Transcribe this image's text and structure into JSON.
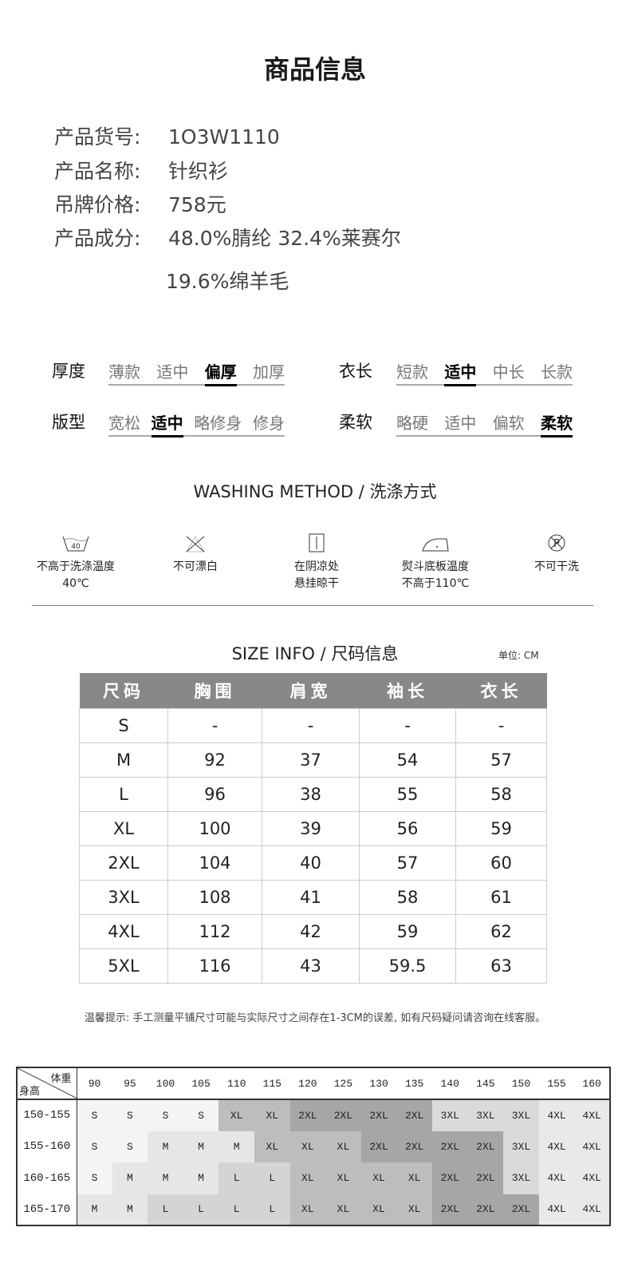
{
  "title": "商品信息",
  "info": [
    {
      "label": "产品货号:",
      "value": "1O3W1110"
    },
    {
      "label": "产品名称:",
      "value": "针织衫"
    },
    {
      "label": "吊牌价格:",
      "value": "758元"
    },
    {
      "label": "产品成分:",
      "value": "48.0%腈纶 32.4%莱赛尔",
      "value2": "19.6%绵羊毛"
    }
  ],
  "attributes": [
    {
      "name": "厚度",
      "options": [
        "薄款",
        "适中",
        "偏厚",
        "加厚"
      ],
      "selected": 2
    },
    {
      "name": "衣长",
      "options": [
        "短款",
        "适中",
        "中长",
        "长款"
      ],
      "selected": 1
    },
    {
      "name": "版型",
      "options": [
        "宽松",
        "适中",
        "略修身",
        "修身"
      ],
      "selected": 1
    },
    {
      "name": "柔软",
      "options": [
        "略硬",
        "适中",
        "偏软",
        "柔软"
      ],
      "selected": 3
    }
  ],
  "washing": {
    "title": "WASHING METHOD / 洗涤方式",
    "items": [
      {
        "icon": "wash-40-icon",
        "icon_text": "40",
        "line1": "不高于洗涤温度",
        "line2": "40℃"
      },
      {
        "icon": "no-bleach-icon",
        "line1": "不可漂白",
        "line2": ""
      },
      {
        "icon": "line-dry-shade-icon",
        "line1": "在阴凉处",
        "line2": "悬挂晾干"
      },
      {
        "icon": "iron-icon",
        "line1": "熨斗底板温度",
        "line2": "不高于110℃"
      },
      {
        "icon": "no-dry-clean-icon",
        "icon_text": "P",
        "line1": "不可干洗",
        "line2": ""
      }
    ]
  },
  "size_info": {
    "title": "SIZE INFO / 尺码信息",
    "unit": "单位: CM",
    "headers": [
      "尺码",
      "胸围",
      "肩宽",
      "袖长",
      "衣长"
    ],
    "rows": [
      [
        "S",
        "-",
        "-",
        "-",
        "-"
      ],
      [
        "M",
        "92",
        "37",
        "54",
        "57"
      ],
      [
        "L",
        "96",
        "38",
        "55",
        "58"
      ],
      [
        "XL",
        "100",
        "39",
        "56",
        "59"
      ],
      [
        "2XL",
        "104",
        "40",
        "57",
        "60"
      ],
      [
        "3XL",
        "108",
        "41",
        "58",
        "61"
      ],
      [
        "4XL",
        "112",
        "42",
        "59",
        "62"
      ],
      [
        "5XL",
        "116",
        "43",
        "59.5",
        "63"
      ]
    ]
  },
  "note": "温馨提示: 手工测量平铺尺寸可能与实际尺寸之间存在1-3CM的误差, 如有尺码疑问请咨询在线客服。",
  "fit_chart": {
    "weight_label": "体重",
    "height_label": "身高",
    "weights": [
      "90",
      "95",
      "100",
      "105",
      "110",
      "115",
      "120",
      "125",
      "130",
      "135",
      "140",
      "145",
      "150",
      "155",
      "160"
    ],
    "rows": [
      {
        "height": "150-155",
        "sizes": [
          "S",
          "S",
          "S",
          "S",
          "XL",
          "XL",
          "2XL",
          "2XL",
          "2XL",
          "2XL",
          "3XL",
          "3XL",
          "3XL",
          "4XL",
          "4XL"
        ]
      },
      {
        "height": "155-160",
        "sizes": [
          "S",
          "S",
          "M",
          "M",
          "M",
          "XL",
          "XL",
          "XL",
          "2XL",
          "2XL",
          "2XL",
          "2XL",
          "3XL",
          "4XL",
          "4XL"
        ]
      },
      {
        "height": "160-165",
        "sizes": [
          "S",
          "M",
          "M",
          "M",
          "L",
          "L",
          "XL",
          "XL",
          "XL",
          "XL",
          "2XL",
          "2XL",
          "3XL",
          "4XL",
          "4XL"
        ]
      },
      {
        "height": "165-170",
        "sizes": [
          "M",
          "M",
          "L",
          "L",
          "L",
          "L",
          "XL",
          "XL",
          "XL",
          "XL",
          "2XL",
          "2XL",
          "2XL",
          "4XL",
          "4XL"
        ]
      }
    ],
    "colors": {
      "S": "#f4f4f4",
      "M": "#e6e6e6",
      "L": "#d4d4d4",
      "XL": "#bdbdbd",
      "2XL": "#a6a6a6",
      "3XL": "#dadada",
      "4XL": "#e9e9e9"
    }
  }
}
